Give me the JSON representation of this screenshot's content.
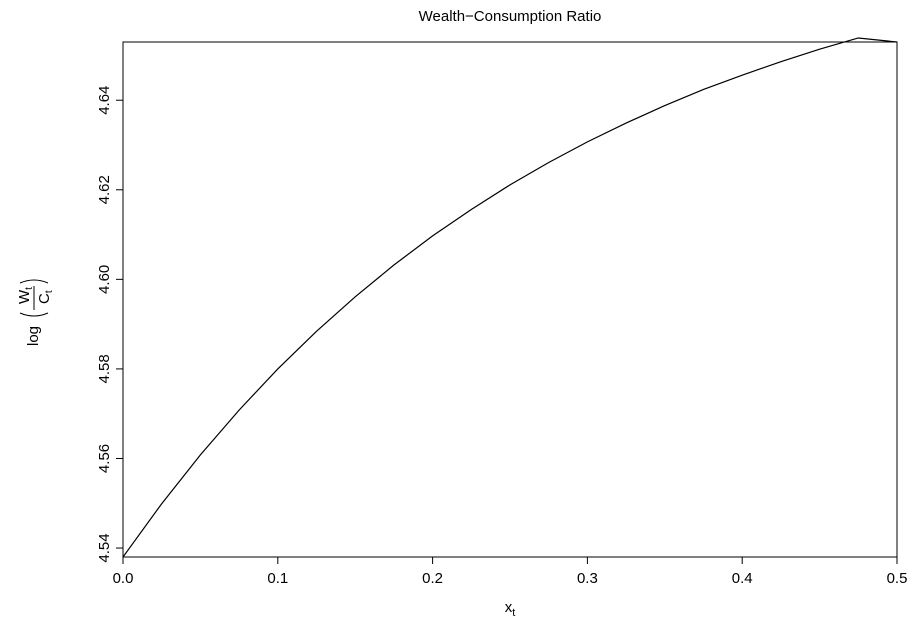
{
  "chart_data": {
    "type": "line",
    "title": "Wealth−Consumption Ratio",
    "xlabel": "x",
    "xlabel_subscript": "t",
    "ylabel": "log(W_t / C_t)",
    "ylabel_parts": {
      "prefix": "log",
      "numerator": "W",
      "denominator": "C",
      "subscript": "t"
    },
    "xlim": [
      0.0,
      0.5
    ],
    "ylim": [
      4.538,
      4.653
    ],
    "x_ticks": [
      "0.0",
      "0.1",
      "0.2",
      "0.3",
      "0.4",
      "0.5"
    ],
    "y_ticks": [
      "4.54",
      "4.56",
      "4.58",
      "4.60",
      "4.62",
      "4.64"
    ],
    "grid": false,
    "series": [
      {
        "x": [
          0.0,
          0.025,
          0.05,
          0.075,
          0.1,
          0.125,
          0.15,
          0.175,
          0.2,
          0.225,
          0.25,
          0.275,
          0.3,
          0.325,
          0.35,
          0.375,
          0.4,
          0.425,
          0.45,
          0.475,
          0.5
        ],
        "y": [
          4.538,
          4.5499,
          4.5608,
          4.5708,
          4.58,
          4.5884,
          4.5961,
          4.6032,
          4.6097,
          4.6156,
          4.6211,
          4.6261,
          4.6307,
          4.6349,
          4.6388,
          4.6424,
          4.6456,
          4.6486,
          4.6514,
          4.6539,
          4.653
        ]
      }
    ]
  }
}
